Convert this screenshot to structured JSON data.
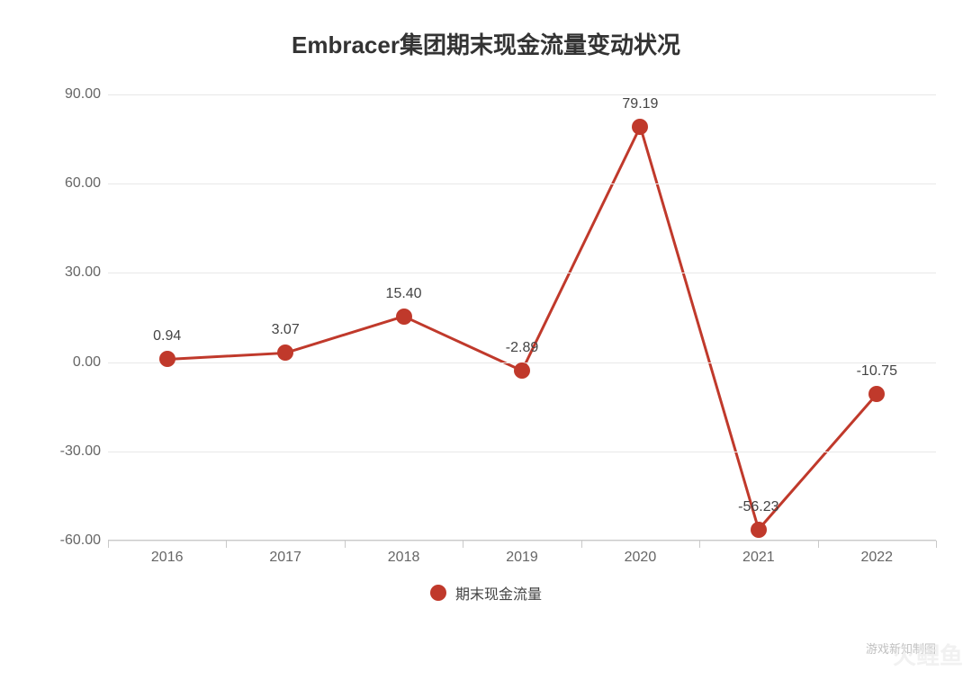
{
  "chart": {
    "type": "line",
    "title": "Embracer集团期末现金流量变动状况",
    "title_fontsize": 26,
    "title_color": "#333333",
    "background_color": "#ffffff",
    "series_name": "期末现金流量",
    "categories": [
      "2016",
      "2017",
      "2018",
      "2019",
      "2020",
      "2021",
      "2022"
    ],
    "values": [
      0.94,
      3.07,
      15.4,
      -2.89,
      79.19,
      -56.23,
      -10.75
    ],
    "value_labels": [
      "0.94",
      "3.07",
      "15.40",
      "-2.89",
      "79.19",
      "-56.23",
      "-10.75"
    ],
    "line_color": "#c0392b",
    "line_width": 3,
    "marker_color": "#c0392b",
    "marker_size": 18,
    "label_fontsize": 16,
    "label_color": "#444444",
    "ylim": [
      -60,
      90
    ],
    "ytick_step": 30,
    "ytick_labels": [
      "-60.00",
      "-30.00",
      "0.00",
      "30.00",
      "60.00",
      "90.00"
    ],
    "grid_color": "#e8e8e8",
    "axis_color": "#c9c9c9",
    "axis_label_color": "#666666",
    "axis_label_fontsize": 16,
    "legend_position": "bottom"
  },
  "watermark_text": "游戏新知制图",
  "watermark_logo": "火鲤鱼"
}
